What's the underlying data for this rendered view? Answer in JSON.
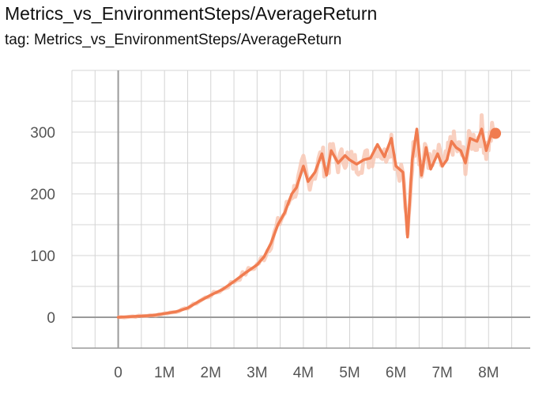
{
  "card": {
    "title": "Metrics_vs_EnvironmentSteps/AverageReturn",
    "tag": "tag: Metrics_vs_EnvironmentSteps/AverageReturn"
  },
  "chart_data": {
    "type": "line",
    "xlim": [
      -1000000,
      8900000
    ],
    "ylim": [
      -50,
      400
    ],
    "x_ticks": [
      0,
      1000000,
      2000000,
      3000000,
      4000000,
      5000000,
      6000000,
      7000000,
      8000000
    ],
    "x_tick_labels": [
      "0",
      "1M",
      "2M",
      "3M",
      "4M",
      "5M",
      "6M",
      "7M",
      "8M"
    ],
    "y_ticks": [
      0,
      100,
      200,
      300
    ],
    "y_tick_labels": [
      "0",
      "100",
      "200",
      "300"
    ],
    "grid": true,
    "colors": {
      "smoothed": "#f07c50",
      "raw": "#f7c4b0"
    },
    "series": [
      {
        "x": [
          0,
          250000,
          500000,
          750000,
          1000000,
          1250000,
          1500000,
          1750000,
          2000000,
          2250000,
          2500000,
          2750000,
          3000000,
          3150000,
          3300000,
          3450000,
          3600000,
          3750000,
          3850000,
          4000000,
          4100000,
          4250000,
          4400000,
          4500000,
          4600000,
          4750000,
          4900000,
          5000000,
          5150000,
          5300000,
          5450000,
          5600000,
          5750000,
          5900000,
          6000000,
          6150000,
          6250000,
          6350000,
          6450000,
          6550000,
          6650000,
          6750000,
          6900000,
          7000000,
          7100000,
          7200000,
          7300000,
          7400000,
          7500000,
          7600000,
          7750000,
          7850000,
          7950000,
          8050000,
          8150000
        ],
        "y": [
          0,
          1,
          2,
          3,
          6,
          9,
          15,
          26,
          36,
          45,
          58,
          72,
          85,
          98,
          120,
          150,
          170,
          200,
          210,
          245,
          220,
          235,
          265,
          230,
          270,
          250,
          262,
          255,
          248,
          255,
          258,
          280,
          260,
          290,
          245,
          235,
          130,
          255,
          305,
          230,
          275,
          240,
          265,
          245,
          255,
          285,
          275,
          270,
          250,
          290,
          285,
          305,
          270,
          295,
          298
        ]
      }
    ]
  }
}
